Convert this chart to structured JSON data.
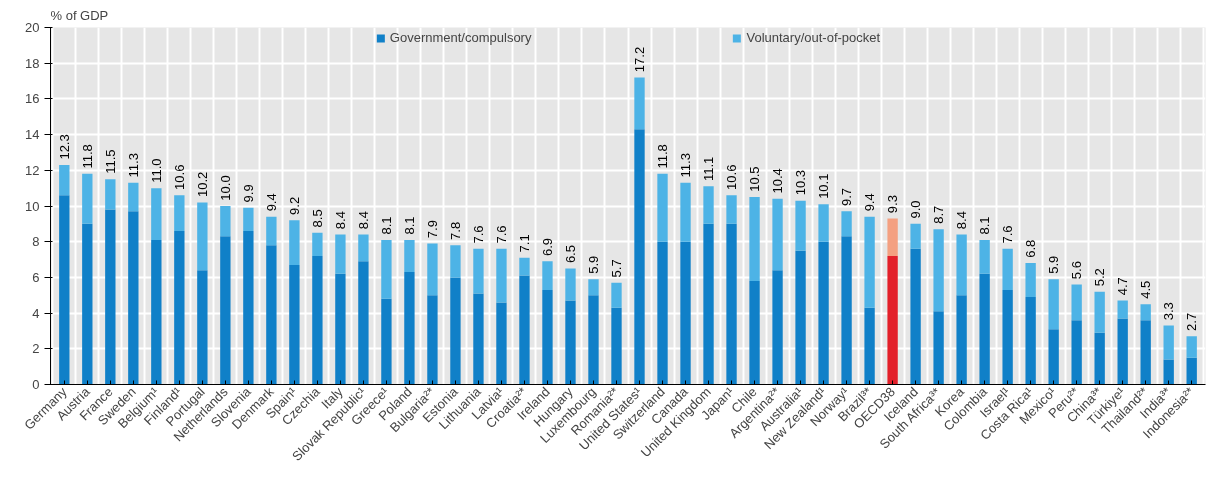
{
  "chart_data": {
    "type": "bar",
    "stacked": true,
    "ylabel": "% of GDP",
    "categories": [
      "Germany",
      "Austria",
      "France",
      "Sweden",
      "Belgium¹",
      "Finland¹",
      "Portugal",
      "Netherlands",
      "Slovenia",
      "Denmark",
      "Spain¹",
      "Czechia",
      "Italy",
      "Slovak Republic¹",
      "Greece¹",
      "Poland",
      "Bulgaria²*",
      "Estonia",
      "Lithuania",
      "Latvia¹",
      "Croatia²*",
      "Ireland",
      "Hungary",
      "Luxembourg",
      "Romania²*",
      "United States¹",
      "Switzerland",
      "Canada",
      "United Kingdom",
      "Japan¹",
      "Chile",
      "Argentina²*",
      "Australia¹",
      "New Zealand¹",
      "Norway¹",
      "Brazil³*",
      "OECD38",
      "Iceland",
      "South Africa³*",
      "Korea",
      "Colombia",
      "Israel¹",
      "Costa Rica¹",
      "Mexico¹",
      "Peru²*",
      "China³*",
      "Türkiye¹",
      "Thailand²*",
      "India³*",
      "Indonesia²*"
    ],
    "series": [
      {
        "name": "Government/compulsory",
        "color": "#1080c8",
        "colors": [
          "#1080c8",
          "#1080c8",
          "#1080c8",
          "#1080c8",
          "#1080c8",
          "#1080c8",
          "#1080c8",
          "#1080c8",
          "#1080c8",
          "#1080c8",
          "#1080c8",
          "#1080c8",
          "#1080c8",
          "#1080c8",
          "#1080c8",
          "#1080c8",
          "#1080c8",
          "#1080c8",
          "#1080c8",
          "#1080c8",
          "#1080c8",
          "#1080c8",
          "#1080c8",
          "#1080c8",
          "#1080c8",
          "#1080c8",
          "#1080c8",
          "#1080c8",
          "#1080c8",
          "#1080c8",
          "#1080c8",
          "#1080c8",
          "#1080c8",
          "#1080c8",
          "#1080c8",
          "#1080c8",
          "#e3202a",
          "#1080c8",
          "#1080c8",
          "#1080c8",
          "#1080c8",
          "#1080c8",
          "#1080c8",
          "#1080c8",
          "#1080c8",
          "#1080c8",
          "#1080c8",
          "#1080c8",
          "#1080c8",
          "#1080c8"
        ],
        "values": [
          10.6,
          9.0,
          9.8,
          9.7,
          8.1,
          8.6,
          6.4,
          8.3,
          8.6,
          7.8,
          6.7,
          7.2,
          6.2,
          6.9,
          4.8,
          6.3,
          5.0,
          6.0,
          5.1,
          4.6,
          6.1,
          5.3,
          4.7,
          5.0,
          4.3,
          14.3,
          8.0,
          8.0,
          9.0,
          9.0,
          5.8,
          6.4,
          7.5,
          8.0,
          8.3,
          4.3,
          7.2,
          7.6,
          4.1,
          5.0,
          6.2,
          5.3,
          4.9,
          3.1,
          3.6,
          2.9,
          3.7,
          3.6,
          1.4,
          1.5
        ]
      },
      {
        "name": "Voluntary/out-of-pocket",
        "color": "#4db3e6",
        "colors": [
          "#4db3e6",
          "#4db3e6",
          "#4db3e6",
          "#4db3e6",
          "#4db3e6",
          "#4db3e6",
          "#4db3e6",
          "#4db3e6",
          "#4db3e6",
          "#4db3e6",
          "#4db3e6",
          "#4db3e6",
          "#4db3e6",
          "#4db3e6",
          "#4db3e6",
          "#4db3e6",
          "#4db3e6",
          "#4db3e6",
          "#4db3e6",
          "#4db3e6",
          "#4db3e6",
          "#4db3e6",
          "#4db3e6",
          "#4db3e6",
          "#4db3e6",
          "#4db3e6",
          "#4db3e6",
          "#4db3e6",
          "#4db3e6",
          "#4db3e6",
          "#4db3e6",
          "#4db3e6",
          "#4db3e6",
          "#4db3e6",
          "#4db3e6",
          "#4db3e6",
          "#f4a081",
          "#4db3e6",
          "#4db3e6",
          "#4db3e6",
          "#4db3e6",
          "#4db3e6",
          "#4db3e6",
          "#4db3e6",
          "#4db3e6",
          "#4db3e6",
          "#4db3e6",
          "#4db3e6",
          "#4db3e6",
          "#4db3e6"
        ],
        "values": [
          1.7,
          2.8,
          1.7,
          1.6,
          2.9,
          2.0,
          3.8,
          1.7,
          1.3,
          1.6,
          2.5,
          1.3,
          2.2,
          1.5,
          3.3,
          1.8,
          2.9,
          1.8,
          2.5,
          3.0,
          1.0,
          1.6,
          1.8,
          0.9,
          1.4,
          2.9,
          3.8,
          3.3,
          2.1,
          1.6,
          4.7,
          4.0,
          2.8,
          2.1,
          1.4,
          5.1,
          2.1,
          1.4,
          4.6,
          3.4,
          1.9,
          2.3,
          1.9,
          2.8,
          2.0,
          2.3,
          1.0,
          0.9,
          1.9,
          1.2
        ]
      }
    ],
    "totals": [
      "12.3",
      "11.8",
      "11.5",
      "11.3",
      "11.0",
      "10.6",
      "10.2",
      "10.0",
      "9.9",
      "9.4",
      "9.2",
      "8.5",
      "8.4",
      "8.4",
      "8.1",
      "8.1",
      "7.9",
      "7.8",
      "7.6",
      "7.6",
      "7.1",
      "6.9",
      "6.5",
      "5.9",
      "5.7",
      "17.2",
      "11.8",
      "11.3",
      "11.1",
      "10.6",
      "10.5",
      "10.4",
      "10.3",
      "10.1",
      "9.7",
      "9.4",
      "9.3",
      "9.0",
      "8.7",
      "8.4",
      "8.1",
      "7.6",
      "6.8",
      "5.9",
      "5.6",
      "5.2",
      "4.7",
      "4.5",
      "3.3",
      "2.7"
    ],
    "ylim": [
      0,
      20
    ],
    "yticks": [
      0,
      2,
      4,
      6,
      8,
      10,
      12,
      14,
      16,
      18,
      20
    ],
    "grid": true,
    "legend": "top"
  }
}
